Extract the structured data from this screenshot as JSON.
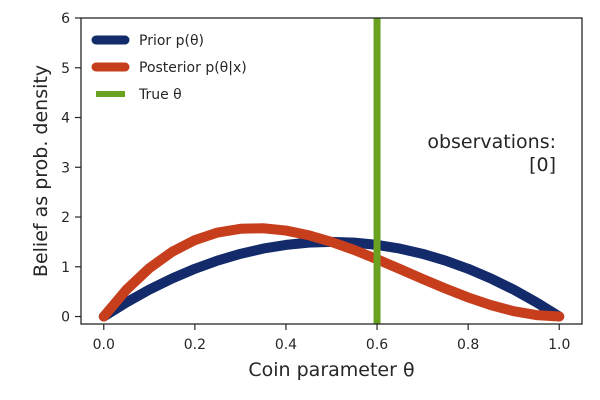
{
  "chart_data": {
    "type": "line",
    "xlabel": "Coin parameter θ",
    "ylabel": "Belief as prob. density",
    "xlim": [
      -0.05,
      1.05
    ],
    "ylim": [
      -0.15,
      6
    ],
    "xticks": [
      0.0,
      0.2,
      0.4,
      0.6,
      0.8,
      1.0
    ],
    "xtick_labels": [
      "0.0",
      "0.2",
      "0.4",
      "0.6",
      "0.8",
      "1.0"
    ],
    "yticks": [
      0,
      1,
      2,
      3,
      4,
      5,
      6
    ],
    "ytick_labels": [
      "0",
      "1",
      "2",
      "3",
      "4",
      "5",
      "6"
    ],
    "grid": false,
    "legend_position": "top-left",
    "series": [
      {
        "name": "Prior p(θ)",
        "color": "#132a6b",
        "x": [
          0.0,
          0.05,
          0.1,
          0.15,
          0.2,
          0.25,
          0.3,
          0.35,
          0.4,
          0.45,
          0.5,
          0.55,
          0.6,
          0.65,
          0.7,
          0.75,
          0.8,
          0.85,
          0.9,
          0.95,
          1.0
        ],
        "y": [
          0.0,
          0.285,
          0.54,
          0.765,
          0.96,
          1.125,
          1.26,
          1.365,
          1.44,
          1.485,
          1.5,
          1.485,
          1.44,
          1.365,
          1.26,
          1.125,
          0.96,
          0.765,
          0.54,
          0.285,
          0.0
        ]
      },
      {
        "name": "Posterior p(θ|x)",
        "color": "#c73e1d",
        "x": [
          0.0,
          0.05,
          0.1,
          0.15,
          0.2,
          0.25,
          0.3,
          0.35,
          0.4,
          0.45,
          0.5,
          0.55,
          0.6,
          0.65,
          0.7,
          0.75,
          0.8,
          0.85,
          0.9,
          0.95,
          1.0
        ],
        "y": [
          0.0,
          0.542,
          0.972,
          1.301,
          1.536,
          1.688,
          1.764,
          1.775,
          1.728,
          1.634,
          1.5,
          1.337,
          1.152,
          0.955,
          0.756,
          0.563,
          0.384,
          0.229,
          0.108,
          0.029,
          0.0
        ]
      }
    ],
    "vlines": [
      {
        "name": "True θ",
        "x": 0.6,
        "color": "#6aa121"
      }
    ],
    "annotation": {
      "line1": "observations:",
      "line2": "[0]"
    }
  }
}
